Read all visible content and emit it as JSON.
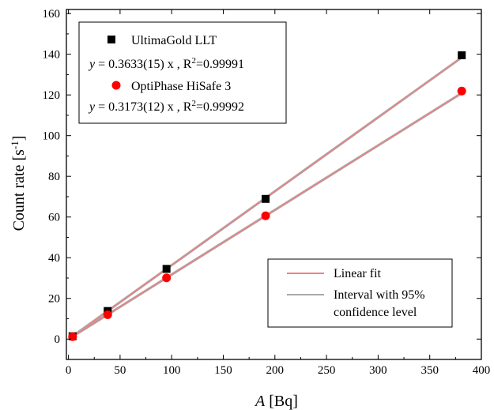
{
  "chart_data": {
    "type": "scatter",
    "xlabel_italic": "A",
    "xlabel_rest": " [Bq]",
    "ylabel_main": "Count rate [s",
    "ylabel_sup": "-1",
    "ylabel_close": "]",
    "xlim": [
      -2,
      400
    ],
    "ylim": [
      -10,
      162
    ],
    "xticks": [
      0,
      50,
      100,
      150,
      200,
      250,
      300,
      350,
      400
    ],
    "yticks": [
      0,
      20,
      40,
      60,
      80,
      100,
      120,
      140,
      160
    ],
    "grid": false,
    "series": [
      {
        "name": "UltimaGold LLT",
        "marker": "square",
        "color": "#000000",
        "x": [
          4,
          38,
          95,
          191,
          381
        ],
        "y": [
          1.4,
          13.8,
          34.5,
          68.9,
          139.5
        ],
        "fit": {
          "slope": 0.3633,
          "eq_italic": "y",
          "eq_mid": " = 0.3633(15) x , R",
          "eq_sup": "2",
          "eq_end": "=0.99991"
        }
      },
      {
        "name": "OptiPhase HiSafe 3",
        "marker": "circle",
        "color": "#ff0000",
        "x": [
          4,
          38,
          95,
          191,
          381
        ],
        "y": [
          1.2,
          12.0,
          30.1,
          60.6,
          121.9
        ],
        "fit": {
          "slope": 0.3173,
          "eq_italic": "y",
          "eq_mid": " = 0.3173(12) x , R",
          "eq_sup": "2",
          "eq_end": "=0.99992"
        }
      }
    ],
    "line_legend": {
      "fit_label": "Linear fit",
      "fit_color": "#f08080",
      "ci_label_line1": "Interval with 95%",
      "ci_label_line2": "confidence level",
      "ci_color": "#a9a9a9"
    },
    "legend_placement": [
      "top-left",
      "bottom-right"
    ]
  }
}
